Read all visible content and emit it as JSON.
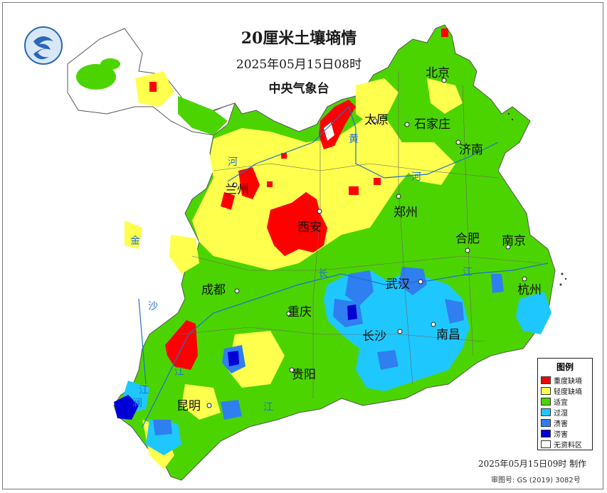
{
  "header": {
    "title": "20厘米土壤墒情",
    "datetime": "2025年05月15日08时",
    "issuer": "中央气象台"
  },
  "cities": {
    "beijing": "北京",
    "taiyuan": "太原",
    "shijiazhuang": "石家庄",
    "jinan": "济南",
    "lanzhou": "兰州",
    "zhengzhou": "郑州",
    "xian": "西安",
    "hefei": "合肥",
    "nanjing": "南京",
    "chengdu": "成都",
    "wuhan": "武汉",
    "hangzhou": "杭州",
    "chongqing": "重庆",
    "changsha": "长沙",
    "nanchang": "南昌",
    "guiyang": "贵阳",
    "kunming": "昆明"
  },
  "rivers": {
    "huang1": "黄",
    "he1": "河",
    "he2": "河",
    "jin": "金",
    "sha": "沙",
    "jiang1": "江",
    "chang": "长",
    "jiang2": "江",
    "jiang3": "江",
    "lan": "澜",
    "jiang4": "江"
  },
  "legend": {
    "title": "图例",
    "items": [
      {
        "label": "重度缺墒",
        "color": "#ff0000"
      },
      {
        "label": "轻度缺墒",
        "color": "#ffff4d"
      },
      {
        "label": "适宜",
        "color": "#4cd400"
      },
      {
        "label": "过湿",
        "color": "#1ec8ff"
      },
      {
        "label": "渍害",
        "color": "#2f7ff0"
      },
      {
        "label": "涝害",
        "color": "#0000d6"
      },
      {
        "label": "无资料区",
        "color": "#ffffff"
      }
    ]
  },
  "footer": {
    "made": "2025年05月15日09时 制作",
    "approval": "审图号: GS (2019) 3082号"
  }
}
